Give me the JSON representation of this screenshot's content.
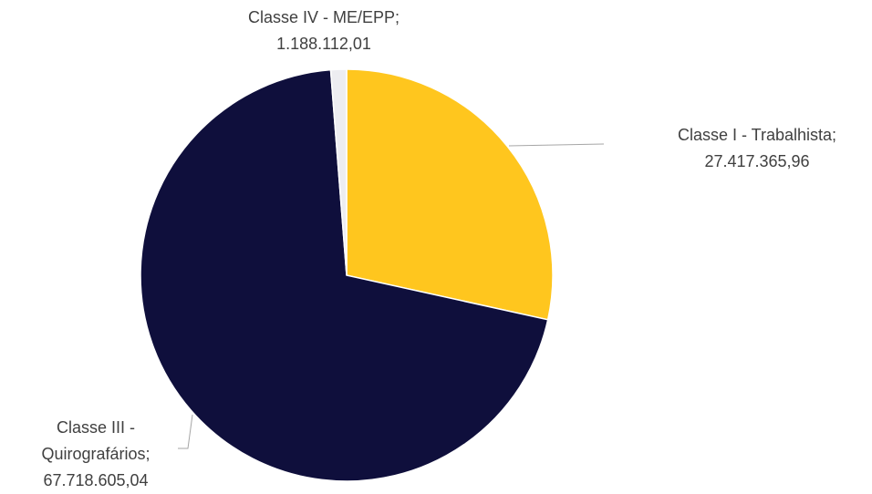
{
  "chart_data": {
    "type": "pie",
    "categories": [
      "Classe I - Trabalhista;",
      "Classe III - Quirografários;",
      "Classe IV - ME/EPP;"
    ],
    "values": [
      27417365.96,
      67718605.04,
      1188112.01
    ],
    "value_labels": [
      "27.417.365,96",
      "67.718.605,04",
      "1.188.112,01"
    ],
    "colors": [
      "#FFC61E",
      "#0F0F3C",
      "#EDEDF1"
    ]
  }
}
